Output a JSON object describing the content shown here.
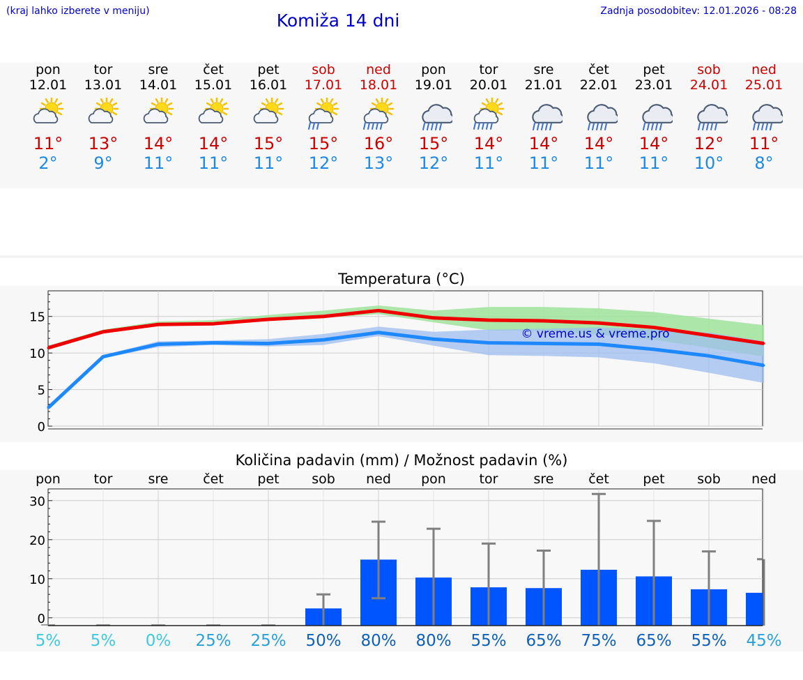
{
  "header": {
    "left_note": "(kraj lahko izberete v meniju)",
    "title": "Komiža 14 dni",
    "updated": "Zadnja posodobitev: 12.01.2026 - 08:28"
  },
  "days": [
    {
      "name": "pon",
      "date": "12.01",
      "icon": "sun-cloud-icon",
      "tmax": "11°",
      "tmin": "2°",
      "weekend": false
    },
    {
      "name": "tor",
      "date": "13.01",
      "icon": "sun-cloud-icon",
      "tmax": "13°",
      "tmin": "9°",
      "weekend": false
    },
    {
      "name": "sre",
      "date": "14.01",
      "icon": "sun-cloud-icon",
      "tmax": "14°",
      "tmin": "11°",
      "weekend": false
    },
    {
      "name": "čet",
      "date": "15.01",
      "icon": "sun-cloud-icon",
      "tmax": "14°",
      "tmin": "11°",
      "weekend": false
    },
    {
      "name": "pet",
      "date": "16.01",
      "icon": "sun-cloud-icon",
      "tmax": "15°",
      "tmin": "11°",
      "weekend": false
    },
    {
      "name": "sob",
      "date": "17.01",
      "icon": "sun-rain-light-icon",
      "tmax": "15°",
      "tmin": "12°",
      "weekend": true
    },
    {
      "name": "ned",
      "date": "18.01",
      "icon": "sun-rain-icon",
      "tmax": "16°",
      "tmin": "13°",
      "weekend": true
    },
    {
      "name": "pon",
      "date": "19.01",
      "icon": "cloud-rain-icon",
      "tmax": "15°",
      "tmin": "12°",
      "weekend": false
    },
    {
      "name": "tor",
      "date": "20.01",
      "icon": "sun-rain-icon",
      "tmax": "14°",
      "tmin": "11°",
      "weekend": false
    },
    {
      "name": "sre",
      "date": "21.01",
      "icon": "cloud-rain-icon",
      "tmax": "14°",
      "tmin": "11°",
      "weekend": false
    },
    {
      "name": "čet",
      "date": "22.01",
      "icon": "cloud-rain-icon",
      "tmax": "14°",
      "tmin": "11°",
      "weekend": false
    },
    {
      "name": "pet",
      "date": "23.01",
      "icon": "cloud-rain-icon",
      "tmax": "14°",
      "tmin": "11°",
      "weekend": false
    },
    {
      "name": "sob",
      "date": "24.01",
      "icon": "cloud-rain-icon",
      "tmax": "12°",
      "tmin": "10°",
      "weekend": true
    },
    {
      "name": "ned",
      "date": "25.01",
      "icon": "cloud-rain-icon",
      "tmax": "11°",
      "tmin": "8°",
      "weekend": true
    }
  ],
  "colors": {
    "tmax": "#ee0000",
    "tmin": "#1e88ff",
    "tmax_band": "#a3e4a0",
    "tmin_band": "#9fbdf0",
    "bar": "#0055ff",
    "errbar": "#808080",
    "watermark": "#0000cc"
  },
  "chart_data": [
    {
      "type": "line",
      "title": "Temperatura (°C)",
      "xlabel": "",
      "ylabel": "",
      "ylim": [
        0,
        18.5
      ],
      "yticks": [
        0,
        5,
        10,
        15
      ],
      "grid": true,
      "x": [
        0,
        1,
        2,
        3,
        4,
        5,
        6,
        7,
        8,
        9,
        10,
        11,
        12,
        13
      ],
      "watermark": "© vreme.us & vreme.pro",
      "series": [
        {
          "name": "max",
          "values": [
            10.7,
            12.9,
            13.9,
            14.0,
            14.6,
            15.0,
            15.8,
            14.8,
            14.5,
            14.4,
            14.1,
            13.5,
            12.4,
            11.3
          ],
          "band_low": [
            10.5,
            12.7,
            13.7,
            13.9,
            14.4,
            14.8,
            15.3,
            14.2,
            13.1,
            13.0,
            12.5,
            11.8,
            10.7,
            9.5
          ],
          "band_high": [
            11.0,
            13.2,
            14.3,
            14.5,
            15.2,
            15.8,
            16.5,
            15.8,
            16.3,
            16.3,
            16.1,
            15.6,
            14.7,
            13.8
          ]
        },
        {
          "name": "min",
          "values": [
            2.5,
            9.5,
            11.2,
            11.4,
            11.3,
            11.8,
            12.8,
            11.9,
            11.4,
            11.3,
            11.2,
            10.5,
            9.6,
            8.3
          ],
          "band_low": [
            2.3,
            9.3,
            10.8,
            11.1,
            10.9,
            11.1,
            12.3,
            11.0,
            9.7,
            9.6,
            9.4,
            8.6,
            7.3,
            5.9
          ],
          "band_high": [
            2.8,
            9.7,
            11.6,
            11.7,
            11.9,
            12.6,
            13.6,
            12.9,
            13.2,
            13.3,
            13.5,
            13.2,
            12.8,
            11.6
          ]
        }
      ]
    },
    {
      "type": "bar",
      "title": "Količina padavin (mm) / Možnost padavin (%)",
      "xlabel": "",
      "ylabel": "",
      "ylim": [
        -2,
        33
      ],
      "yticks": [
        0,
        10,
        20,
        30
      ],
      "grid": true,
      "categories": [
        "pon",
        "tor",
        "sre",
        "čet",
        "pet",
        "sob",
        "ned",
        "pon",
        "tor",
        "sre",
        "čet",
        "pet",
        "sob",
        "ned"
      ],
      "values": [
        0,
        0,
        0,
        0,
        0,
        2.4,
        14.9,
        10.3,
        7.8,
        7.6,
        12.3,
        10.6,
        7.3,
        6.4
      ],
      "err_low": [
        0,
        0,
        0,
        0,
        0,
        0,
        5.0,
        0,
        0,
        0,
        0,
        0,
        0,
        0
      ],
      "err_high": [
        0,
        0,
        0,
        0,
        0,
        6.0,
        24.6,
        22.8,
        19.0,
        17.2,
        31.7,
        24.8,
        17.0,
        15.0
      ],
      "chance": [
        "5%",
        "5%",
        "0%",
        "25%",
        "25%",
        "50%",
        "80%",
        "80%",
        "55%",
        "65%",
        "75%",
        "65%",
        "55%",
        "45%"
      ],
      "chance_colors": [
        "#40c8e0",
        "#40c8e0",
        "#40c8e0",
        "#2aa0d8",
        "#2aa0d8",
        "#1060b8",
        "#1060b8",
        "#1060b8",
        "#1060b8",
        "#1060b8",
        "#1060b8",
        "#1060b8",
        "#1060b8",
        "#2aa0d8"
      ]
    }
  ]
}
